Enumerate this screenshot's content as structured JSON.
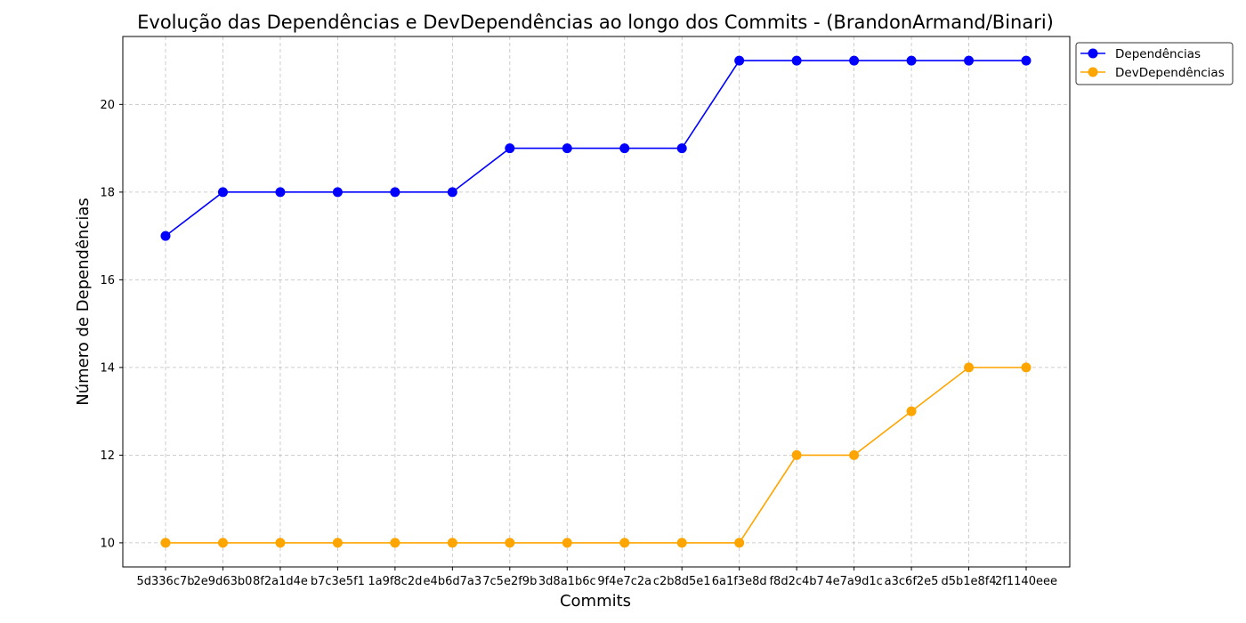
{
  "chart_data": {
    "type": "line",
    "title": "Evolução das Dependências e DevDependências ao longo dos Commits - (BrandonArmand/Binari)",
    "xlabel": "Commits",
    "ylabel": "Número de Dependências",
    "ylim": [
      9.45,
      21.55
    ],
    "yticks": [
      10,
      12,
      14,
      16,
      18,
      20
    ],
    "grid": true,
    "legend_position": "upper-right-outside",
    "categories": [
      "5d336c7b",
      "2e9d63b0",
      "8f2a1d4e",
      "b7c3e5f1",
      "1a9f8c2d",
      "e4b6d7a3",
      "7c5e2f9b",
      "3d8a1b6c",
      "9f4e7c2a",
      "c2b8d5e1",
      "6a1f3e8d",
      "f8d2c4b7",
      "4e7a9d1c",
      "a3c6f2e5",
      "d5b1e8f4",
      "2f1140eee"
    ],
    "series": [
      {
        "name": "Dependências",
        "color": "#0000ff",
        "values": [
          17,
          18,
          18,
          18,
          18,
          18,
          19,
          19,
          19,
          19,
          21,
          21,
          21,
          21,
          21,
          21
        ]
      },
      {
        "name": "DevDependências",
        "color": "#ffa500",
        "values": [
          10,
          10,
          10,
          10,
          10,
          10,
          10,
          10,
          10,
          10,
          10,
          12,
          12,
          13,
          14,
          14
        ]
      }
    ]
  }
}
